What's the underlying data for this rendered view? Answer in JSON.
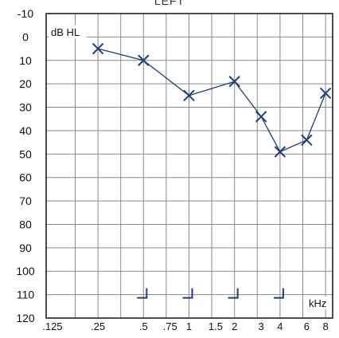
{
  "page": {
    "title": "LEFT"
  },
  "chart_data": {
    "type": "line",
    "title": "LEFT",
    "ylabel": "dB HL",
    "xlabel": "kHz",
    "y_axis": {
      "min": -10,
      "max": 120,
      "step": 10,
      "inverted": true,
      "tick_labels": [
        "-10",
        "0",
        "10",
        "20",
        "30",
        "40",
        "50",
        "60",
        "70",
        "80",
        "90",
        "100",
        "110",
        "120"
      ]
    },
    "x_axis": {
      "scale": "log2 frequency (octave columns, half-octave midlines)",
      "ticks": [
        {
          "value": 0.125,
          "label": ".125"
        },
        {
          "value": 0.25,
          "label": ".25"
        },
        {
          "value": 0.5,
          "label": ".5"
        },
        {
          "value": 0.75,
          "label": ".75"
        },
        {
          "value": 1,
          "label": "1"
        },
        {
          "value": 1.5,
          "label": "1.5"
        },
        {
          "value": 2,
          "label": "2"
        },
        {
          "value": 3,
          "label": "3"
        },
        {
          "value": 4,
          "label": "4"
        },
        {
          "value": 6,
          "label": "6"
        },
        {
          "value": 8,
          "label": "8"
        }
      ]
    },
    "grid": true,
    "series": [
      {
        "symbol": "x",
        "connected": true,
        "color": "#1e3f7a",
        "points": [
          {
            "x": 0.25,
            "y": 5
          },
          {
            "x": 0.5,
            "y": 10
          },
          {
            "x": 1,
            "y": 25
          },
          {
            "x": 2,
            "y": 19
          },
          {
            "x": 3,
            "y": 34
          },
          {
            "x": 4,
            "y": 49
          },
          {
            "x": 6,
            "y": 44
          },
          {
            "x": 8,
            "y": 24
          }
        ]
      },
      {
        "symbol": "bracket",
        "connected": false,
        "color": "#1e3f7a",
        "points": [
          {
            "x": 0.5,
            "y": 110
          },
          {
            "x": 1,
            "y": 110
          },
          {
            "x": 2,
            "y": 110
          },
          {
            "x": 4,
            "y": 110
          }
        ]
      }
    ],
    "colors": {
      "grid": "#8a8a8a",
      "frame": "#222222",
      "marker": "#1e3f7a"
    }
  }
}
